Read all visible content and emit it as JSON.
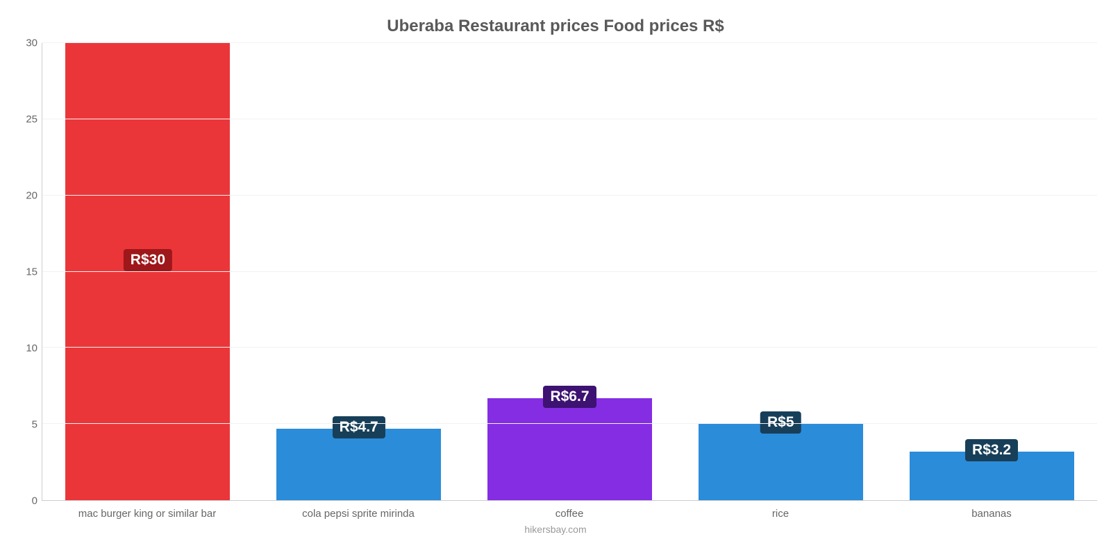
{
  "chart": {
    "type": "bar",
    "title": "Uberaba Restaurant prices Food prices R$",
    "title_fontsize": 24,
    "title_color": "#595959",
    "caption": "hikersbay.com",
    "caption_color": "#999999",
    "background_color": "#ffffff",
    "grid_color": "#f2f2f2",
    "axis_line_color": "#cccccc",
    "axis_label_color": "#666666",
    "axis_label_fontsize": 15,
    "y": {
      "min": 0,
      "max": 30,
      "tick_step": 5,
      "ticks": [
        0,
        5,
        10,
        15,
        20,
        25,
        30
      ]
    },
    "bar_width_ratio": 0.78,
    "value_label_fontsize": 21,
    "value_label_color": "#ffffff",
    "categories": [
      {
        "label": "mac burger king or similar bar",
        "value": 30,
        "text": "R$30",
        "bar_color": "#eb3639",
        "badge_bg": "#9e171a"
      },
      {
        "label": "cola pepsi sprite mirinda",
        "value": 4.7,
        "text": "R$4.7",
        "bar_color": "#2b8cda",
        "badge_bg": "#173f59"
      },
      {
        "label": "coffee",
        "value": 6.7,
        "text": "R$6.7",
        "bar_color": "#842de3",
        "badge_bg": "#3d1272"
      },
      {
        "label": "rice",
        "value": 5,
        "text": "R$5",
        "bar_color": "#2b8cda",
        "badge_bg": "#173f59"
      },
      {
        "label": "bananas",
        "value": 3.2,
        "text": "R$3.2",
        "bar_color": "#2b8cda",
        "badge_bg": "#173f59"
      }
    ]
  }
}
